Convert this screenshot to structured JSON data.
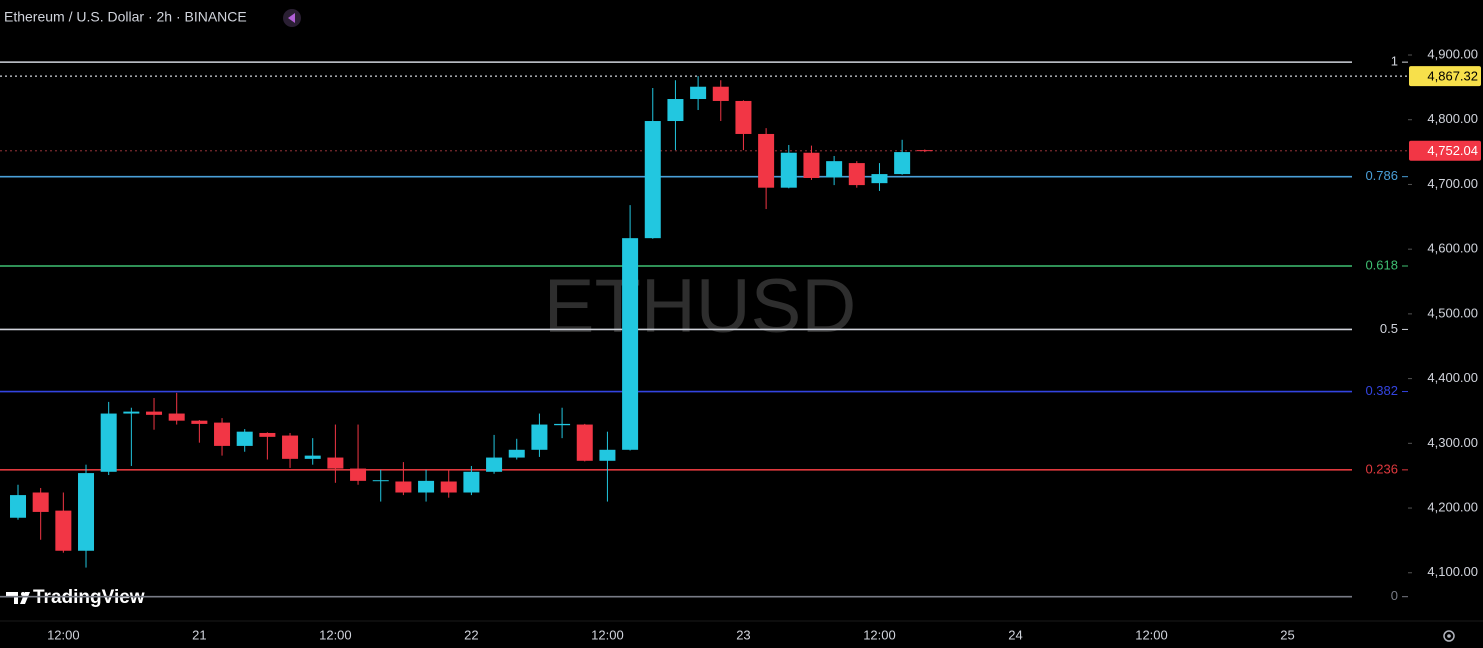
{
  "chart_data": {
    "type": "candlestick",
    "title": "Ethereum / U.S. Dollar · 2h · BINANCE",
    "watermark": "ETHUSD",
    "logo": "TradingView",
    "up_color": "#22c7e0",
    "down_color": "#f23645",
    "grid": false,
    "categories": [
      null,
      null,
      "12:00",
      null,
      null,
      null,
      null,
      null,
      "21",
      null,
      null,
      null,
      null,
      null,
      "12:00",
      null,
      null,
      null,
      null,
      null,
      "22",
      null,
      null,
      null,
      null,
      null,
      "12:00",
      null,
      null,
      null,
      null,
      null,
      "23",
      null,
      null,
      null,
      null,
      null,
      "12:00",
      null,
      null,
      null,
      null,
      null,
      "24",
      null,
      null,
      null,
      null,
      null,
      "12:00",
      null,
      null,
      null,
      null,
      null,
      "25",
      null,
      null,
      null,
      null
    ],
    "open": [
      4185,
      4224,
      4196,
      4134,
      4256,
      4346,
      4349,
      4346,
      4335,
      4332,
      4296,
      4316,
      4312,
      4276,
      4278,
      4261,
      4242,
      4241,
      4224,
      4241,
      4224,
      4256,
      4278,
      4290,
      4328,
      4329,
      4273,
      4290,
      4617,
      4798,
      4832,
      4851,
      4829,
      4778,
      4695,
      4749,
      4711,
      4733,
      4702,
      4716,
      4753,
      null,
      null,
      null,
      null,
      null,
      null,
      null,
      null,
      null,
      null,
      null,
      null,
      null,
      null,
      null,
      null,
      null,
      null,
      null,
      null
    ],
    "high": [
      4236,
      4231,
      4224,
      4267,
      4364,
      4355,
      4370,
      4378,
      4336,
      4339,
      4322,
      4317,
      4316,
      4308,
      4329,
      4329,
      4259,
      4271,
      4259,
      4259,
      4265,
      4313,
      4307,
      4346,
      4355,
      4330,
      4318,
      4668,
      4849,
      4861,
      4867.32,
      4861,
      4830,
      4787,
      4761,
      4760,
      4744,
      4736,
      4733,
      4769,
      4754,
      null,
      null,
      null,
      null,
      null,
      null,
      null,
      null,
      null,
      null,
      null,
      null,
      null,
      null,
      null,
      null,
      null,
      null,
      null,
      null
    ],
    "low": [
      4182,
      4151,
      4131,
      4108,
      4251,
      4265,
      4321,
      4329,
      4301,
      4281,
      4287,
      4275,
      4262,
      4267,
      4239,
      4236,
      4210,
      4220,
      4210,
      4216,
      4220,
      4253,
      4275,
      4279,
      4308,
      4272,
      4210,
      4289,
      4616,
      4753,
      4815,
      4798,
      4753,
      4662,
      4694,
      4707,
      4699,
      4695,
      4690,
      4715,
      4750,
      null,
      null,
      null,
      null,
      null,
      null,
      null,
      null,
      null,
      null,
      null,
      null,
      null,
      null,
      null,
      null,
      null,
      null,
      null,
      null
    ],
    "close": [
      4220,
      4194,
      4134,
      4254,
      4346,
      4349,
      4344,
      4335,
      4330,
      4296,
      4318,
      4310,
      4276,
      4281,
      4261,
      4242,
      4243,
      4224,
      4242,
      4224,
      4256,
      4278,
      4290,
      4329,
      4330,
      4273,
      4290,
      4617,
      4798,
      4832,
      4851,
      4829,
      4778,
      4695,
      4749,
      4710,
      4736,
      4699,
      4716,
      4750,
      4752.04,
      null,
      null,
      null,
      null,
      null,
      null,
      null,
      null,
      null,
      null,
      null,
      null,
      null,
      null,
      null,
      null,
      null,
      null,
      null,
      null
    ],
    "ylim": [
      4027,
      4985
    ],
    "yticks": [
      {
        "value": 4100,
        "label": "4,100.00"
      },
      {
        "value": 4200,
        "label": "4,200.00"
      },
      {
        "value": 4300,
        "label": "4,300.00"
      },
      {
        "value": 4400,
        "label": "4,400.00"
      },
      {
        "value": 4500,
        "label": "4,500.00"
      },
      {
        "value": 4600,
        "label": "4,600.00"
      },
      {
        "value": 4700,
        "label": "4,700.00"
      },
      {
        "value": 4800,
        "label": "4,800.00"
      },
      {
        "value": 4900,
        "label": "4,900.00"
      }
    ],
    "fib_levels": [
      {
        "ratio": 1,
        "price": 4889,
        "color": "#d1d4dc"
      },
      {
        "ratio": 0.786,
        "price": 4712,
        "color": "#4a9fd8"
      },
      {
        "ratio": 0.618,
        "price": 4574,
        "color": "#3fbf72"
      },
      {
        "ratio": 0.5,
        "price": 4476,
        "color": "#d1d4dc"
      },
      {
        "ratio": 0.382,
        "price": 4380,
        "color": "#3344e0"
      },
      {
        "ratio": 0.236,
        "price": 4259,
        "color": "#e0393e"
      },
      {
        "ratio": 0,
        "price": 4063,
        "color": "#787b86"
      }
    ],
    "price_markers": [
      {
        "value": 4867.32,
        "label": "4,867.32",
        "color": "#f7e04b",
        "text_color": "#000000",
        "line_color": "#d1d4dc"
      },
      {
        "value": 4752.04,
        "label": "4,752.04",
        "color": "#f23645",
        "text_color": "#ffffff",
        "line_color": "#7a2a2e"
      }
    ]
  }
}
